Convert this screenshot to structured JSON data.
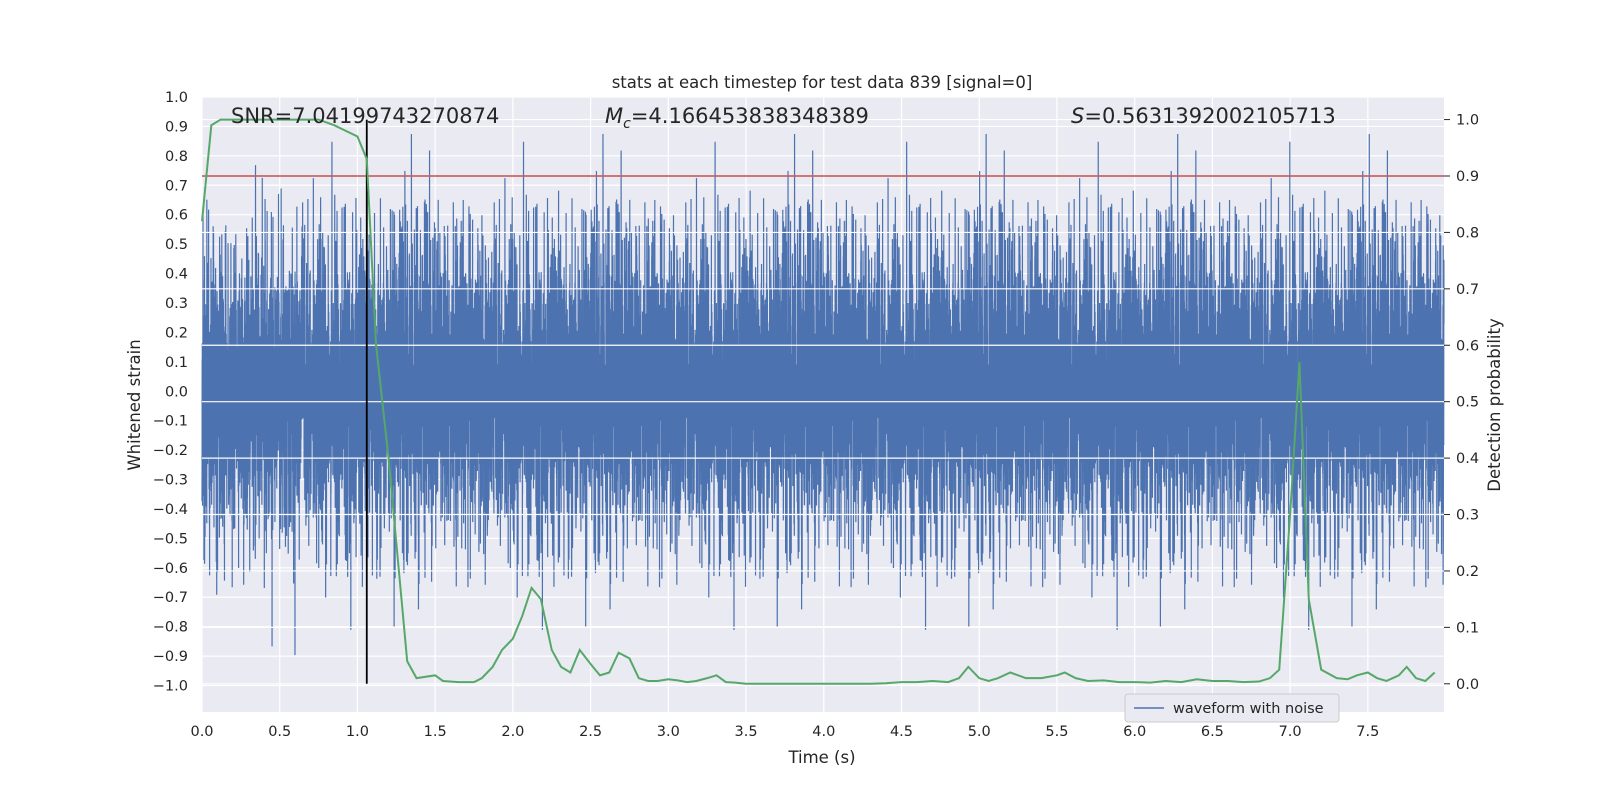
{
  "chart_data": {
    "type": "line",
    "title": "stats at each timestep for test data 839 [signal=0]",
    "xlabel": "Time (s)",
    "ylabel": "Whitened strain",
    "y2label": "Detection probability",
    "xlim": [
      0.0,
      7.99
    ],
    "ylim": [
      -1.09,
      1.0
    ],
    "y2lim": [
      -0.05,
      1.04
    ],
    "xticks": [
      "0.0",
      "0.5",
      "1.0",
      "1.5",
      "2.0",
      "2.5",
      "3.0",
      "3.5",
      "4.0",
      "4.5",
      "5.0",
      "5.5",
      "6.0",
      "6.5",
      "7.0",
      "7.5"
    ],
    "yticks": [
      "1.0",
      "0.9",
      "0.8",
      "0.7",
      "0.6",
      "0.5",
      "0.4",
      "0.3",
      "0.2",
      "0.1",
      "0.0",
      "-0.1",
      "-0.2",
      "-0.3",
      "-0.4",
      "-0.5",
      "-0.6",
      "-0.7",
      "-0.8",
      "-0.9",
      "-1.0"
    ],
    "y2ticks": [
      "1.0",
      "0.9",
      "0.8",
      "0.7",
      "0.6",
      "0.5",
      "0.4",
      "0.3",
      "0.2",
      "0.1",
      "0.0"
    ],
    "grid": true,
    "legend": {
      "position": "lower-right",
      "entries": [
        "waveform with noise"
      ]
    },
    "annotations": {
      "snr": "SNR=7.04199743270874",
      "mc_prefix": "M",
      "mc_sub": "c",
      "mc_value": "=4.166453838348389",
      "s_prefix": "S",
      "s_value": "=0.5631392002105713"
    },
    "threshold": {
      "value": 0.9,
      "axis": "right",
      "color": "#c44e52"
    },
    "vline": {
      "x": 1.06,
      "ymin": -1.0,
      "ymax": 1.0,
      "axis": "right_range",
      "color": "#000000"
    },
    "waveform": {
      "name": "waveform with noise",
      "color": "#4c72b0",
      "sample_rate_per_s": 2048,
      "core_amplitude": 0.33,
      "typical_peak": 0.55,
      "max_abs": 0.99
    },
    "probability_series": {
      "name": "detection probability",
      "color": "#55a868",
      "x": [
        0.0,
        0.06,
        0.12,
        0.25,
        0.5,
        0.75,
        0.85,
        1.0,
        1.06,
        1.12,
        1.2,
        1.32,
        1.38,
        1.5,
        1.55,
        1.65,
        1.75,
        1.8,
        1.87,
        1.93,
        2.0,
        2.06,
        2.12,
        2.18,
        2.25,
        2.31,
        2.37,
        2.43,
        2.5,
        2.56,
        2.62,
        2.68,
        2.75,
        2.81,
        2.87,
        2.93,
        3.0,
        3.06,
        3.12,
        3.18,
        3.25,
        3.31,
        3.37,
        3.43,
        3.5,
        3.56,
        3.62,
        3.7,
        3.8,
        3.9,
        4.0,
        4.1,
        4.2,
        4.3,
        4.4,
        4.5,
        4.6,
        4.7,
        4.8,
        4.87,
        4.93,
        5.0,
        5.06,
        5.12,
        5.2,
        5.3,
        5.4,
        5.5,
        5.55,
        5.62,
        5.7,
        5.8,
        5.9,
        6.0,
        6.1,
        6.2,
        6.3,
        6.4,
        6.5,
        6.6,
        6.7,
        6.8,
        6.87,
        6.93,
        7.0,
        7.06,
        7.12,
        7.2,
        7.3,
        7.37,
        7.43,
        7.5,
        7.56,
        7.62,
        7.7,
        7.75,
        7.81,
        7.87,
        7.93
      ],
      "values": [
        0.82,
        0.99,
        1.0,
        1.0,
        1.0,
        1.0,
        0.99,
        0.97,
        0.93,
        0.6,
        0.4,
        0.04,
        0.01,
        0.015,
        0.005,
        0.003,
        0.003,
        0.01,
        0.03,
        0.06,
        0.08,
        0.12,
        0.17,
        0.15,
        0.06,
        0.03,
        0.02,
        0.06,
        0.035,
        0.015,
        0.02,
        0.055,
        0.045,
        0.01,
        0.005,
        0.005,
        0.008,
        0.006,
        0.003,
        0.005,
        0.01,
        0.015,
        0.003,
        0.002,
        0.0,
        0.0,
        0.0,
        0.0,
        0.0,
        0.0,
        0.0,
        0.0,
        0.0,
        0.0,
        0.001,
        0.003,
        0.003,
        0.005,
        0.003,
        0.01,
        0.03,
        0.01,
        0.005,
        0.01,
        0.02,
        0.01,
        0.01,
        0.015,
        0.02,
        0.01,
        0.005,
        0.006,
        0.003,
        0.003,
        0.002,
        0.005,
        0.003,
        0.008,
        0.005,
        0.005,
        0.003,
        0.004,
        0.01,
        0.025,
        0.3,
        0.57,
        0.15,
        0.025,
        0.01,
        0.008,
        0.015,
        0.02,
        0.01,
        0.005,
        0.015,
        0.03,
        0.01,
        0.005,
        0.02
      ]
    }
  }
}
